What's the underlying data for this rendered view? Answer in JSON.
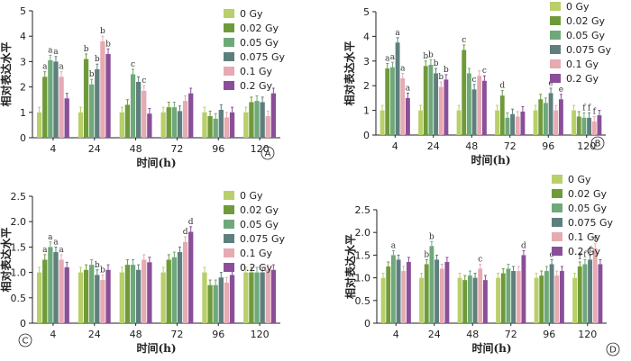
{
  "series_names": [
    "0 Gy",
    "0.02 Gy",
    "0.05 Gy",
    "0.075 Gy",
    "0.1 Gy",
    "0.2 Gy"
  ],
  "colors": [
    "#b9cf6a",
    "#6f9a3a",
    "#6fa97a",
    "#5e7f7d",
    "#e6aab2",
    "#8a4f98"
  ],
  "chart_data": [
    {
      "type": "bar",
      "panel_label": "A",
      "xlabel": "时间(h)",
      "ylabel": "相对表达水平",
      "categories": [
        "4",
        "24",
        "48",
        "72",
        "96",
        "120"
      ],
      "ylim": [
        0,
        5
      ],
      "yticks": [
        "0",
        "1",
        "2",
        "3",
        "4",
        "5"
      ],
      "series": [
        {
          "name": "0 Gy",
          "values": [
            1.0,
            1.0,
            1.0,
            1.0,
            1.0,
            1.0
          ]
        },
        {
          "name": "0.02 Gy",
          "values": [
            2.4,
            3.1,
            1.3,
            1.2,
            0.85,
            1.4
          ]
        },
        {
          "name": "0.05 Gy",
          "values": [
            3.05,
            2.1,
            2.5,
            1.2,
            0.75,
            1.45
          ]
        },
        {
          "name": "0.075 Gy",
          "values": [
            3.0,
            2.7,
            2.2,
            1.05,
            1.1,
            1.4
          ]
        },
        {
          "name": "0.1 Gy",
          "values": [
            2.4,
            3.8,
            1.85,
            1.45,
            0.8,
            0.85
          ]
        },
        {
          "name": "0.2 Gy",
          "values": [
            1.55,
            3.3,
            0.95,
            1.75,
            1.0,
            1.75
          ]
        }
      ],
      "annotations": [
        {
          "group": 0,
          "series": 1,
          "text": "a"
        },
        {
          "group": 0,
          "series": 2,
          "text": "a"
        },
        {
          "group": 0,
          "series": 3,
          "text": "a"
        },
        {
          "group": 0,
          "series": 4,
          "text": "a"
        },
        {
          "group": 1,
          "series": 1,
          "text": "b"
        },
        {
          "group": 1,
          "series": 2,
          "text": "b"
        },
        {
          "group": 1,
          "series": 3,
          "text": "b"
        },
        {
          "group": 1,
          "series": 4,
          "text": "b"
        },
        {
          "group": 1,
          "series": 5,
          "text": "b"
        },
        {
          "group": 2,
          "series": 2,
          "text": "c"
        },
        {
          "group": 2,
          "series": 4,
          "text": "c"
        }
      ]
    },
    {
      "type": "bar",
      "panel_label": "B",
      "xlabel": "时间(h)",
      "ylabel": "相对表达水平",
      "categories": [
        "4",
        "24",
        "48",
        "72",
        "96",
        "120"
      ],
      "ylim": [
        0,
        5
      ],
      "yticks": [
        "0",
        "1",
        "2",
        "3",
        "4",
        "5"
      ],
      "series": [
        {
          "name": "0 Gy",
          "values": [
            1.0,
            1.0,
            1.0,
            1.0,
            1.0,
            1.0
          ]
        },
        {
          "name": "0.02 Gy",
          "values": [
            2.7,
            2.8,
            3.45,
            1.6,
            1.45,
            0.75
          ]
        },
        {
          "name": "0.05 Gy",
          "values": [
            2.75,
            2.85,
            2.5,
            0.7,
            1.3,
            0.7
          ]
        },
        {
          "name": "0.075 Gy",
          "values": [
            3.75,
            2.5,
            1.85,
            0.85,
            1.7,
            0.7
          ]
        },
        {
          "name": "0.1 Gy",
          "values": [
            2.3,
            1.95,
            2.4,
            0.75,
            1.0,
            0.55
          ]
        },
        {
          "name": "0.2 Gy",
          "values": [
            1.5,
            2.25,
            2.2,
            0.95,
            1.45,
            0.8
          ]
        }
      ],
      "annotations": [
        {
          "group": 0,
          "series": 1,
          "text": "a"
        },
        {
          "group": 0,
          "series": 2,
          "text": "a"
        },
        {
          "group": 0,
          "series": 3,
          "text": "a"
        },
        {
          "group": 0,
          "series": 4,
          "text": "a"
        },
        {
          "group": 0,
          "series": 5,
          "text": "a"
        },
        {
          "group": 1,
          "series": 1,
          "text": "b"
        },
        {
          "group": 1,
          "series": 2,
          "text": "b"
        },
        {
          "group": 1,
          "series": 3,
          "text": "b"
        },
        {
          "group": 1,
          "series": 4,
          "text": "b"
        },
        {
          "group": 1,
          "series": 5,
          "text": "b"
        },
        {
          "group": 2,
          "series": 1,
          "text": "c"
        },
        {
          "group": 2,
          "series": 3,
          "text": "c"
        },
        {
          "group": 2,
          "series": 5,
          "text": "c"
        },
        {
          "group": 3,
          "series": 1,
          "text": "d"
        },
        {
          "group": 4,
          "series": 3,
          "text": "e"
        },
        {
          "group": 4,
          "series": 5,
          "text": "e"
        },
        {
          "group": 5,
          "series": 2,
          "text": "f"
        },
        {
          "group": 5,
          "series": 3,
          "text": "f"
        },
        {
          "group": 5,
          "series": 4,
          "text": "f"
        }
      ]
    },
    {
      "type": "bar",
      "panel_label": "C",
      "xlabel": "时间(h)",
      "ylabel": "相对表达水平",
      "categories": [
        "4",
        "24",
        "48",
        "72",
        "96",
        "120"
      ],
      "ylim": [
        0,
        2.5
      ],
      "yticks": [
        "0",
        "0.5",
        "1.0",
        "1.5",
        "2.0",
        "2.5"
      ],
      "series": [
        {
          "name": "0 Gy",
          "values": [
            1.0,
            1.0,
            1.0,
            1.0,
            1.0,
            1.0
          ]
        },
        {
          "name": "0.02 Gy",
          "values": [
            1.25,
            1.05,
            1.15,
            1.25,
            0.75,
            1.0
          ]
        },
        {
          "name": "0.05 Gy",
          "values": [
            1.5,
            1.15,
            1.15,
            1.3,
            0.75,
            1.0
          ]
        },
        {
          "name": "0.075 Gy",
          "values": [
            1.4,
            0.95,
            1.05,
            1.4,
            0.9,
            1.0
          ]
        },
        {
          "name": "0.1 Gy",
          "values": [
            1.25,
            0.85,
            1.25,
            1.6,
            0.8,
            1.05
          ]
        },
        {
          "name": "0.2 Gy",
          "values": [
            1.1,
            1.05,
            1.2,
            1.8,
            0.95,
            1.05
          ]
        }
      ],
      "annotations": [
        {
          "group": 0,
          "series": 1,
          "text": "a"
        },
        {
          "group": 0,
          "series": 2,
          "text": "a"
        },
        {
          "group": 0,
          "series": 3,
          "text": "a"
        },
        {
          "group": 0,
          "series": 4,
          "text": "a"
        },
        {
          "group": 1,
          "series": 3,
          "text": "b"
        },
        {
          "group": 1,
          "series": 4,
          "text": "b"
        },
        {
          "group": 3,
          "series": 4,
          "text": "d"
        },
        {
          "group": 3,
          "series": 5,
          "text": "d"
        }
      ]
    },
    {
      "type": "bar",
      "panel_label": "D",
      "xlabel": "时间(h)",
      "ylabel": "相对表达水平",
      "categories": [
        "4",
        "24",
        "48",
        "72",
        "96",
        "120"
      ],
      "ylim": [
        0,
        2.5
      ],
      "yticks": [
        "0",
        "0.5",
        "1.0",
        "1.5",
        "2.0",
        "2.5"
      ],
      "series": [
        {
          "name": "0 Gy",
          "values": [
            1.0,
            1.0,
            1.0,
            1.0,
            1.0,
            1.0
          ]
        },
        {
          "name": "0.02 Gy",
          "values": [
            1.25,
            1.3,
            0.95,
            1.1,
            1.05,
            1.25
          ]
        },
        {
          "name": "0.05 Gy",
          "values": [
            1.5,
            1.7,
            1.05,
            1.2,
            1.15,
            1.3
          ]
        },
        {
          "name": "0.075 Gy",
          "values": [
            1.4,
            1.4,
            1.0,
            1.15,
            1.3,
            1.4
          ]
        },
        {
          "name": "0.1 Gy",
          "values": [
            1.15,
            1.2,
            1.2,
            1.15,
            1.05,
            1.65
          ]
        },
        {
          "name": "0.2 Gy",
          "values": [
            1.35,
            1.35,
            0.95,
            1.5,
            1.15,
            1.3
          ]
        }
      ],
      "annotations": [
        {
          "group": 0,
          "series": 2,
          "text": "a"
        },
        {
          "group": 1,
          "series": 1,
          "text": "b"
        },
        {
          "group": 1,
          "series": 2,
          "text": "b"
        },
        {
          "group": 2,
          "series": 4,
          "text": "c"
        },
        {
          "group": 3,
          "series": 5,
          "text": "d"
        },
        {
          "group": 4,
          "series": 3,
          "text": "c"
        },
        {
          "group": 5,
          "series": 1,
          "text": "f"
        },
        {
          "group": 5,
          "series": 2,
          "text": "f"
        },
        {
          "group": 5,
          "series": 3,
          "text": "f"
        },
        {
          "group": 5,
          "series": 4,
          "text": "f"
        }
      ]
    }
  ]
}
